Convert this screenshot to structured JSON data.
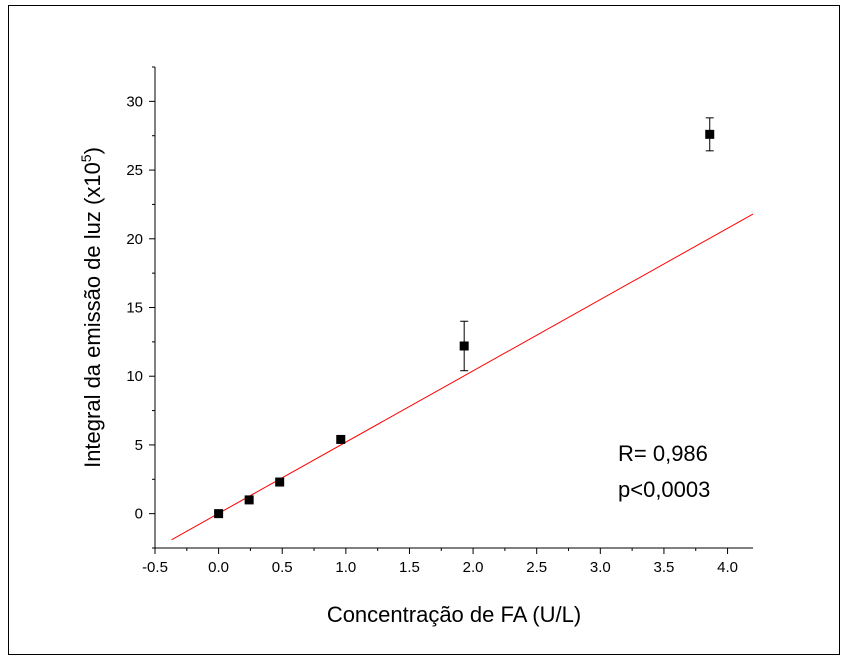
{
  "chart_data": {
    "type": "scatter",
    "xlabel": "Concentração de FA (U/L)",
    "ylabel_main": "Integral da emissão de luz (x10",
    "ylabel_sup": "5",
    "ylabel_end": ")",
    "xlim": [
      -0.5,
      4.2
    ],
    "ylim": [
      -2.5,
      32.5
    ],
    "x_ticks": [
      -0.5,
      0.0,
      0.5,
      1.0,
      1.5,
      2.0,
      2.5,
      3.0,
      3.5,
      4.0
    ],
    "x_tick_labels": [
      "-0.5",
      "0.0",
      "0.5",
      "1.0",
      "1.5",
      "2.0",
      "2.5",
      "3.0",
      "3.5",
      "4.0"
    ],
    "y_ticks": [
      0,
      5,
      10,
      15,
      20,
      25,
      30
    ],
    "y_tick_labels": [
      "0",
      "5",
      "10",
      "15",
      "20",
      "25",
      "30"
    ],
    "points": [
      {
        "x": 0.0,
        "y": 0.0,
        "err": 0.2
      },
      {
        "x": 0.24,
        "y": 1.0,
        "err": 0.2
      },
      {
        "x": 0.48,
        "y": 2.3,
        "err": 0.2
      },
      {
        "x": 0.96,
        "y": 5.4,
        "err": 0.2
      },
      {
        "x": 1.93,
        "y": 12.2,
        "err": 1.8
      },
      {
        "x": 3.86,
        "y": 27.6,
        "err": 1.2
      }
    ],
    "fit_line": {
      "x_start": -0.37,
      "y_start": -1.9,
      "x_end": 4.2,
      "y_end": 21.8,
      "color": "#ff0000"
    },
    "annotations": [
      "R= 0,986",
      "p<0,0003"
    ],
    "grid": false
  }
}
